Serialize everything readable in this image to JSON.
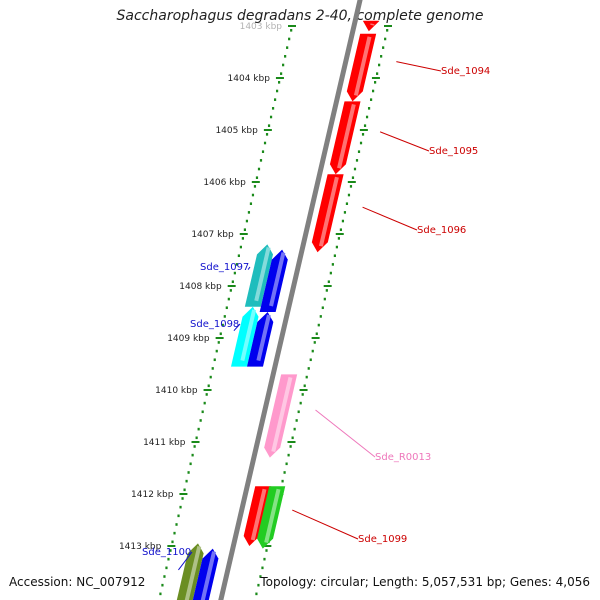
{
  "title": "Saccharophagus degradans 2-40, complete genome",
  "accession_text": "Accession: NC_007912",
  "summary_text": "Topology: circular; Length: 5,057,531 bp; Genes: 4,056",
  "scale": {
    "unit": "kbp",
    "positions": [
      1403,
      1404,
      1405,
      1406,
      1407,
      1408,
      1409,
      1410,
      1411,
      1412,
      1413
    ],
    "labels": [
      "1403 kbp",
      "1404 kbp",
      "1405 kbp",
      "1406 kbp",
      "1407 kbp",
      "1408 kbp",
      "1409 kbp",
      "1410 kbp",
      "1411 kbp",
      "1412 kbp",
      "1413 kbp"
    ],
    "tick_color": "#1a8a1a"
  },
  "backbone_color": "#808080",
  "genes": [
    {
      "id": "g-top",
      "name": "",
      "strand": "plus",
      "lane": 1,
      "start": 1402.9,
      "end": 1403.1,
      "color": "#ff0000",
      "label_color": "#cc0000"
    },
    {
      "id": "g-1094",
      "name": "Sde_1094",
      "strand": "plus",
      "lane": 1,
      "start": 1403.15,
      "end": 1404.45,
      "color": "#ff0000",
      "label_color": "#cc0000"
    },
    {
      "id": "g-1095",
      "name": "Sde_1095",
      "strand": "plus",
      "lane": 1,
      "start": 1404.45,
      "end": 1405.85,
      "color": "#ff0000",
      "label_color": "#cc0000"
    },
    {
      "id": "g-1096",
      "name": "Sde_1096",
      "strand": "plus",
      "lane": 1,
      "start": 1405.85,
      "end": 1407.35,
      "color": "#ff0000",
      "label_color": "#cc0000"
    },
    {
      "id": "g-1097",
      "name": "Sde_1097",
      "strand": "minus",
      "lane": 2,
      "start": 1407.2,
      "end": 1408.4,
      "color": "#1fbdbd",
      "label_color": "#1010cc"
    },
    {
      "id": "g-1097b",
      "name": "",
      "strand": "minus",
      "lane": 1,
      "start": 1407.3,
      "end": 1408.5,
      "color": "#0000ee",
      "label_color": "#1010cc"
    },
    {
      "id": "g-1098",
      "name": "Sde_1098",
      "strand": "minus",
      "lane": 2,
      "start": 1408.4,
      "end": 1409.55,
      "color": "#00ffff",
      "label_color": "#1010cc"
    },
    {
      "id": "g-1098b",
      "name": "",
      "strand": "minus",
      "lane": 1,
      "start": 1408.5,
      "end": 1409.55,
      "color": "#0000ee",
      "label_color": "#1010cc"
    },
    {
      "id": "g-R0013",
      "name": "Sde_R0013",
      "strand": "plus",
      "lane": 1,
      "start": 1409.7,
      "end": 1411.3,
      "color": "#ff99cc",
      "label_color": "#ee77bb"
    },
    {
      "id": "g-1099",
      "name": "Sde_1099",
      "strand": "plus",
      "lane": 1,
      "start": 1411.85,
      "end": 1413.0,
      "color": "#ff0000",
      "label_color": "#cc0000"
    },
    {
      "id": "g-1099b",
      "name": "",
      "strand": "plus",
      "lane": 2,
      "start": 1411.85,
      "end": 1413.05,
      "color": "#22cc22",
      "label_color": "#cc0000"
    },
    {
      "id": "g-1100",
      "name": "Sde_1100",
      "strand": "minus",
      "lane": 2,
      "start": 1412.95,
      "end": 1414.2,
      "color": "#6b8e23",
      "label_color": "#1010cc"
    },
    {
      "id": "g-1100b",
      "name": "",
      "strand": "minus",
      "lane": 1,
      "start": 1413.05,
      "end": 1414.2,
      "color": "#0000ee",
      "label_color": "#1010cc"
    }
  ]
}
